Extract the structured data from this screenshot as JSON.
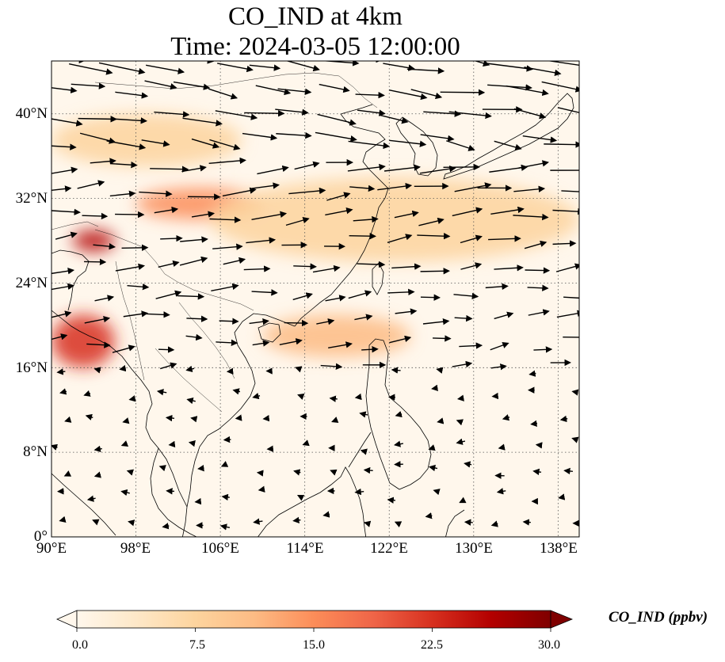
{
  "title": {
    "line1": "CO_IND at 4km",
    "line2": "Time: 2024-03-05 12:00:00"
  },
  "map": {
    "projection": "PlateCarree",
    "lon_range": [
      90,
      140
    ],
    "lat_range": [
      0,
      45
    ],
    "x_ticks": [
      "90°E",
      "98°E",
      "106°E",
      "114°E",
      "122°E",
      "130°E",
      "138°E"
    ],
    "x_tick_values": [
      90,
      98,
      106,
      114,
      122,
      130,
      138
    ],
    "y_ticks": [
      "0°",
      "8°N",
      "16°N",
      "24°N",
      "32°N",
      "40°N"
    ],
    "y_tick_values": [
      0,
      8,
      16,
      24,
      32,
      40
    ],
    "gridlines": "dotted",
    "overlay": "wind vectors (black arrows)",
    "plumes": [
      {
        "lon": [
          90,
          108
        ],
        "lat": [
          35,
          40
        ],
        "level": 8
      },
      {
        "lon": [
          98,
          110
        ],
        "lat": [
          30,
          33
        ],
        "level": 14
      },
      {
        "lon": [
          105,
          140
        ],
        "lat": [
          26,
          34
        ],
        "level": 9
      },
      {
        "lon": [
          90,
          96
        ],
        "lat": [
          16,
          21
        ],
        "level": 22
      },
      {
        "lon": [
          110,
          124
        ],
        "lat": [
          17,
          21
        ],
        "level": 12
      },
      {
        "lon": [
          92,
          96
        ],
        "lat": [
          27,
          29
        ],
        "level": 27
      }
    ]
  },
  "colorbar": {
    "label": "CO_IND (ppbv)",
    "colormap": "OrRd",
    "ticks": [
      "0.0",
      "7.5",
      "15.0",
      "22.5",
      "30.0"
    ],
    "tick_values": [
      0,
      7.5,
      15,
      22.5,
      30
    ],
    "range": [
      0,
      30
    ],
    "extend": "both",
    "colors": [
      "#fff7ec",
      "#fee8c8",
      "#fdd49e",
      "#fdbb84",
      "#fc8d59",
      "#ef6548",
      "#d7301f",
      "#b30000",
      "#7f0000"
    ]
  }
}
